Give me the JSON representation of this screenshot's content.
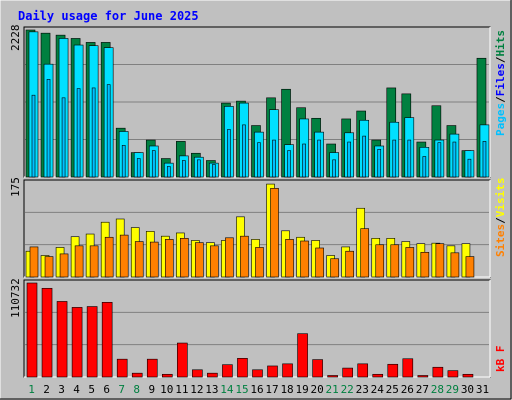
{
  "title": "Daily usage for June 2025",
  "colors": {
    "background": "#c0c0c0",
    "title": "#0000ff",
    "hits": "#008040",
    "files": "#00e0ff",
    "pages": "#00c0ff",
    "visits": "#ffff00",
    "sites": "#ff8000",
    "kbytes": "#ff0000",
    "weekend_label": "#008040",
    "weekday_label": "#000000"
  },
  "legend": {
    "pages": "Pages",
    "files": "Files",
    "hits": "Hits",
    "sites": "Sites",
    "visits": "Visits",
    "kbytes": "kB F",
    "sep": "/"
  },
  "chart_data": [
    {
      "type": "bar",
      "name": "hits-files-pages",
      "x": [
        1,
        2,
        3,
        4,
        5,
        6,
        7,
        8,
        9,
        10,
        11,
        12,
        13,
        14,
        15,
        16,
        17,
        18,
        19,
        20,
        21,
        22,
        23,
        24,
        25,
        26,
        27,
        28,
        29,
        30,
        31
      ],
      "ymax_label": "2228",
      "ylim": [
        0,
        2228
      ],
      "grid": true,
      "series": [
        {
          "name": "Hits",
          "values": [
            2228,
            2180,
            2150,
            2100,
            2040,
            2040,
            740,
            370,
            560,
            280,
            540,
            360,
            250,
            1120,
            1150,
            780,
            1200,
            1330,
            1050,
            890,
            500,
            880,
            1000,
            560,
            1350,
            1260,
            530,
            1080,
            780,
            400,
            1800
          ]
        },
        {
          "name": "Files",
          "values": [
            2200,
            1710,
            2100,
            2000,
            1990,
            1960,
            690,
            370,
            470,
            210,
            320,
            300,
            210,
            1070,
            1120,
            680,
            1020,
            490,
            880,
            680,
            370,
            670,
            860,
            470,
            830,
            900,
            450,
            560,
            650,
            400,
            790
          ]
        },
        {
          "name": "Pages",
          "values": [
            1240,
            1480,
            1200,
            1340,
            1350,
            1400,
            480,
            280,
            400,
            160,
            250,
            260,
            190,
            720,
            790,
            520,
            560,
            400,
            500,
            560,
            260,
            530,
            620,
            420,
            560,
            560,
            310,
            520,
            530,
            270,
            540
          ]
        }
      ]
    },
    {
      "type": "bar",
      "name": "visits-sites",
      "x": [
        1,
        2,
        3,
        4,
        5,
        6,
        7,
        8,
        9,
        10,
        11,
        12,
        13,
        14,
        15,
        16,
        17,
        18,
        19,
        20,
        21,
        22,
        23,
        24,
        25,
        26,
        27,
        28,
        29,
        30,
        31
      ],
      "ymax_label": "175",
      "ylim": [
        0,
        175
      ],
      "grid": true,
      "series": [
        {
          "name": "Visits",
          "values": [
            48,
            40,
            55,
            75,
            80,
            102,
            108,
            92,
            85,
            76,
            82,
            68,
            64,
            68,
            112,
            70,
            173,
            86,
            74,
            68,
            40,
            56,
            128,
            72,
            72,
            66,
            62,
            63,
            58,
            62,
            0
          ]
        },
        {
          "name": "Sites",
          "values": [
            56,
            38,
            43,
            58,
            58,
            74,
            78,
            66,
            65,
            70,
            72,
            64,
            58,
            73,
            76,
            55,
            165,
            70,
            67,
            54,
            34,
            48,
            90,
            60,
            60,
            55,
            46,
            62,
            45,
            38,
            0
          ]
        }
      ]
    },
    {
      "type": "bar",
      "name": "kbytes",
      "x": [
        1,
        2,
        3,
        4,
        5,
        6,
        7,
        8,
        9,
        10,
        11,
        12,
        13,
        14,
        15,
        16,
        17,
        18,
        19,
        20,
        21,
        22,
        23,
        24,
        25,
        26,
        27,
        28,
        29,
        30,
        31
      ],
      "ymax_label": "110732",
      "ylim": [
        0,
        110732
      ],
      "grid": true,
      "series": [
        {
          "name": "kB F",
          "values": [
            110732,
            104500,
            89000,
            82000,
            83000,
            88000,
            21000,
            4500,
            21000,
            3200,
            40000,
            8500,
            4500,
            14500,
            22000,
            8500,
            13000,
            15500,
            51000,
            20500,
            1800,
            10500,
            15500,
            3200,
            15000,
            21500,
            1800,
            11500,
            7500,
            3200,
            0
          ]
        }
      ]
    }
  ],
  "x_labels": [
    "1",
    "2",
    "3",
    "4",
    "5",
    "6",
    "7",
    "8",
    "9",
    "10",
    "11",
    "12",
    "13",
    "14",
    "15",
    "16",
    "17",
    "18",
    "19",
    "20",
    "21",
    "22",
    "23",
    "24",
    "25",
    "26",
    "27",
    "28",
    "29",
    "30",
    "31"
  ],
  "weekend_days": [
    1,
    7,
    8,
    14,
    15,
    21,
    22,
    28,
    29
  ]
}
